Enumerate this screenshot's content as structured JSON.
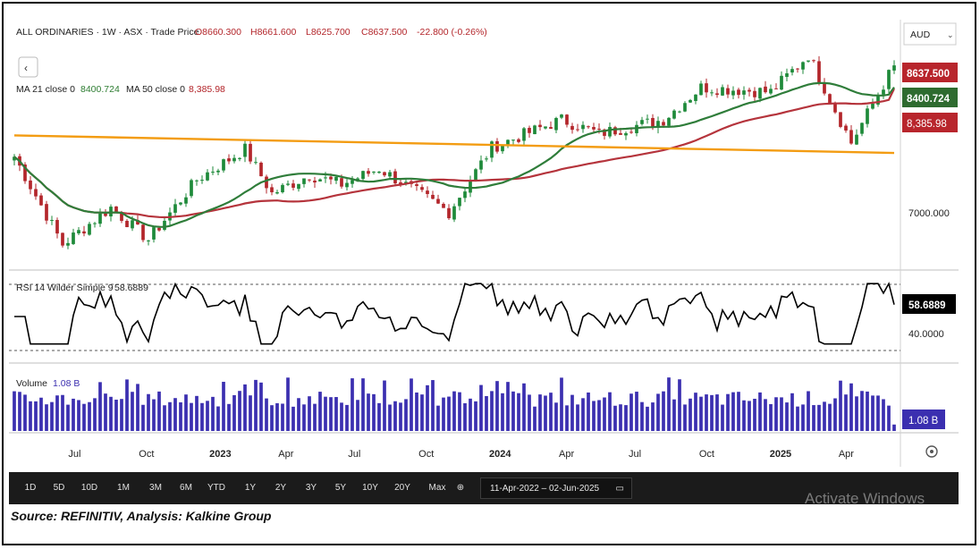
{
  "header": {
    "symbol_line": "ALL ORDINARIES · 1W · ASX · Trade Price",
    "ohlc": {
      "o": "O8660.300",
      "h": "H8661.600",
      "l": "L8625.700",
      "c": "C8637.500",
      "chg": "-22.800 (-0.26%)"
    },
    "ma_line": {
      "ma21_label": "MA 21 close 0",
      "ma21_value": "8400.724",
      "ma50_label": "MA 50 close 0",
      "ma50_value": "8,385.98"
    },
    "currency": "AUD",
    "back_icon": "chevron-left-icon",
    "settings_icon": "gear-icon"
  },
  "price_tags": {
    "last": "8637.500",
    "ma21": "8400.724",
    "ma50": "8,385.98",
    "axis_label": "7000.000"
  },
  "rsi": {
    "label": "RSI 14 Wilder Simple 9",
    "value": "58.6889",
    "level_label": "40.0000"
  },
  "volume": {
    "label": "Volume",
    "value": "1.08 B",
    "tag": "1.08 B"
  },
  "time_axis": [
    "Jul",
    "Oct",
    "2023",
    "Apr",
    "Jul",
    "Oct",
    "2024",
    "Apr",
    "Jul",
    "Oct",
    "2025",
    "Apr"
  ],
  "toolbar": {
    "ranges": [
      "1D",
      "5D",
      "10D",
      "1M",
      "3M",
      "6M",
      "YTD",
      "1Y",
      "2Y",
      "3Y",
      "5Y",
      "10Y",
      "20Y",
      "Max"
    ],
    "date_range": "11-Apr-2022  –  02-Jun-2025",
    "calendar_icon": "calendar-icon",
    "plus_icon": "add-circle-icon"
  },
  "watermark": "Activate Windows",
  "source": "Source: REFINITIV, Analysis: Kalkine Group",
  "colors": {
    "up": "#1e8a3a",
    "down": "#b3262b",
    "ma21": "#2f7d3a",
    "ma50": "#b5343c",
    "trend": "#f39c12",
    "volume": "#3b2fb0",
    "last_tag": "#b8252c",
    "ma21_tag": "#2e6b2f"
  },
  "chart_data": {
    "type": "line",
    "title": "ALL ORDINARIES",
    "x_start": "11-Apr-2022",
    "x_end": "02-Jun-2025",
    "interval": "1W",
    "price_close_keypoints": [
      {
        "date": "2022-04-11",
        "value": 7650
      },
      {
        "date": "2022-06-13",
        "value": 6700
      },
      {
        "date": "2022-08-15",
        "value": 7100
      },
      {
        "date": "2022-10-03",
        "value": 6750
      },
      {
        "date": "2022-12-05",
        "value": 7400
      },
      {
        "date": "2023-02-06",
        "value": 7730
      },
      {
        "date": "2023-03-13",
        "value": 7250
      },
      {
        "date": "2023-05-01",
        "value": 7450
      },
      {
        "date": "2023-06-12",
        "value": 7350
      },
      {
        "date": "2023-07-31",
        "value": 7520
      },
      {
        "date": "2023-10-30",
        "value": 7050
      },
      {
        "date": "2023-12-25",
        "value": 7750
      },
      {
        "date": "2024-03-25",
        "value": 8050
      },
      {
        "date": "2024-05-13",
        "value": 7900
      },
      {
        "date": "2024-08-05",
        "value": 8050
      },
      {
        "date": "2024-09-23",
        "value": 8400
      },
      {
        "date": "2024-12-23",
        "value": 8350
      },
      {
        "date": "2025-02-10",
        "value": 8750
      },
      {
        "date": "2025-04-07",
        "value": 7800
      },
      {
        "date": "2025-06-02",
        "value": 8637.5
      }
    ],
    "ma21_last": 8400.724,
    "ma50_last": 8385.98,
    "trendline": [
      {
        "date": "2022-04-11",
        "value": 7880
      },
      {
        "date": "2025-06-02",
        "value": 7690
      }
    ],
    "rsi_last": 58.6889,
    "rsi_level": 40,
    "volume_last": "1.08 B",
    "ylim": [
      6500,
      8900
    ]
  }
}
